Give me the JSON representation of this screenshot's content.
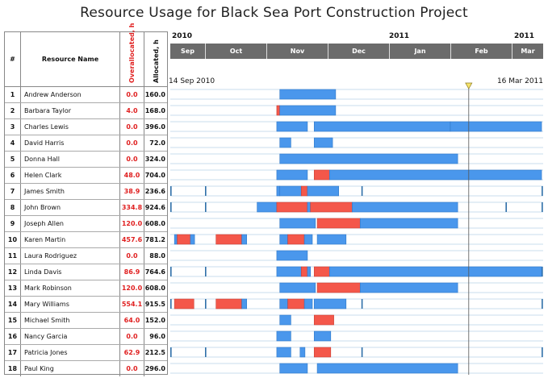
{
  "title": "Resource Usage for Black Sea Port Construction Project",
  "columns": {
    "num": "#",
    "name": "Resource Name",
    "overallocated": "Overallocated, h",
    "allocated": "Allocated, h"
  },
  "timeline": {
    "years": [
      {
        "label": "2010",
        "month_index": 0
      },
      {
        "label": "2011",
        "month_index": 4
      },
      {
        "label": "2011",
        "month_index": 6
      }
    ],
    "months": [
      "Sep",
      "Oct",
      "Nov",
      "Dec",
      "Jan",
      "Feb",
      "Mar"
    ],
    "start_label": "14 Sep 2010",
    "end_label": "16 Mar 2011",
    "current_marker_month": 5.3
  },
  "colors": {
    "normal": "#4a97ec",
    "overallocated": "#f4574a",
    "tick": "#2e6fa8",
    "grid": "#c9dcee"
  },
  "chart_data": {
    "type": "gantt",
    "title": "Resource Usage for Black Sea Port Construction Project",
    "x_units": "months from start of Sep 2010",
    "resources": [
      {
        "num": "1",
        "name": "Andrew Anderson",
        "overallocated": "0.0",
        "allocated": "160.0",
        "segments": [
          [
            2.22,
            3.13,
            "n"
          ]
        ]
      },
      {
        "num": "2",
        "name": "Barbara Taylor",
        "overallocated": "4.0",
        "allocated": "168.0",
        "segments": [
          [
            2.17,
            2.22,
            "o"
          ],
          [
            2.22,
            3.13,
            "n"
          ]
        ]
      },
      {
        "num": "3",
        "name": "Charles Lewis",
        "overallocated": "0.0",
        "allocated": "396.0",
        "segments": [
          [
            2.17,
            2.67,
            "n"
          ],
          [
            2.78,
            5.0,
            "n"
          ],
          [
            5.0,
            6.95,
            "n"
          ]
        ]
      },
      {
        "num": "4",
        "name": "David Harris",
        "overallocated": "0.0",
        "allocated": "72.0",
        "segments": [
          [
            2.22,
            2.4,
            "n"
          ],
          [
            2.78,
            3.08,
            "n"
          ]
        ]
      },
      {
        "num": "5",
        "name": "Donna Hall",
        "overallocated": "0.0",
        "allocated": "324.0",
        "segments": [
          [
            2.22,
            5.12,
            "n"
          ]
        ]
      },
      {
        "num": "6",
        "name": "Helen Clark",
        "overallocated": "48.0",
        "allocated": "704.0",
        "segments": [
          [
            2.17,
            2.67,
            "n"
          ],
          [
            2.78,
            3.03,
            "o"
          ],
          [
            3.03,
            6.95,
            "n"
          ]
        ]
      },
      {
        "num": "7",
        "name": "James Smith",
        "overallocated": "38.9",
        "allocated": "236.6",
        "segments": [
          [
            2.17,
            2.22,
            "n"
          ],
          [
            2.22,
            2.57,
            "n"
          ],
          [
            2.57,
            2.67,
            "o"
          ],
          [
            2.67,
            3.18,
            "n"
          ]
        ],
        "ticks": [
          0.0,
          1.0,
          2.17,
          3.55,
          6.95
        ]
      },
      {
        "num": "8",
        "name": "John Brown",
        "overallocated": "334.8",
        "allocated": "924.6",
        "segments": [
          [
            1.85,
            2.17,
            "n"
          ],
          [
            2.17,
            2.67,
            "o"
          ],
          [
            2.67,
            2.72,
            "n"
          ],
          [
            2.72,
            3.4,
            "o"
          ],
          [
            3.4,
            5.12,
            "n"
          ]
        ],
        "ticks": [
          0.0,
          1.0,
          5.9,
          6.95
        ]
      },
      {
        "num": "9",
        "name": "Joseph Allen",
        "overallocated": "120.0",
        "allocated": "608.0",
        "segments": [
          [
            2.22,
            2.8,
            "n"
          ],
          [
            2.83,
            3.53,
            "o"
          ],
          [
            3.53,
            5.12,
            "n"
          ]
        ]
      },
      {
        "num": "10",
        "name": "Karen Martin",
        "overallocated": "457.6",
        "allocated": "781.2",
        "segments": [
          [
            0.12,
            0.2,
            "n"
          ],
          [
            0.2,
            0.58,
            "o"
          ],
          [
            0.58,
            0.7,
            "n"
          ],
          [
            1.18,
            1.6,
            "o"
          ],
          [
            1.6,
            1.68,
            "n"
          ],
          [
            2.22,
            2.35,
            "n"
          ],
          [
            2.35,
            2.62,
            "o"
          ],
          [
            2.62,
            2.75,
            "n"
          ],
          [
            2.83,
            3.3,
            "n"
          ]
        ]
      },
      {
        "num": "11",
        "name": "Laura Rodriguez",
        "overallocated": "0.0",
        "allocated": "88.0",
        "segments": [
          [
            2.17,
            2.67,
            "n"
          ]
        ]
      },
      {
        "num": "12",
        "name": "Linda Davis",
        "overallocated": "86.9",
        "allocated": "764.6",
        "segments": [
          [
            2.17,
            2.57,
            "n"
          ],
          [
            2.57,
            2.67,
            "o"
          ],
          [
            2.67,
            2.72,
            "n"
          ],
          [
            2.78,
            3.03,
            "o"
          ],
          [
            3.03,
            6.95,
            "n"
          ]
        ],
        "ticks": [
          0.0,
          1.0,
          3.55,
          6.95
        ]
      },
      {
        "num": "13",
        "name": "Mark Robinson",
        "overallocated": "120.0",
        "allocated": "608.0",
        "segments": [
          [
            2.22,
            2.8,
            "n"
          ],
          [
            2.83,
            3.53,
            "o"
          ],
          [
            3.53,
            5.12,
            "n"
          ]
        ]
      },
      {
        "num": "14",
        "name": "Mary Williams",
        "overallocated": "554.1",
        "allocated": "915.5",
        "segments": [
          [
            0.12,
            0.68,
            "o"
          ],
          [
            1.18,
            1.6,
            "o"
          ],
          [
            1.6,
            1.68,
            "n"
          ],
          [
            2.22,
            2.35,
            "n"
          ],
          [
            2.35,
            2.62,
            "o"
          ],
          [
            2.62,
            2.75,
            "n"
          ],
          [
            2.78,
            3.3,
            "n"
          ]
        ],
        "ticks": [
          0.0,
          1.0,
          3.55,
          6.95
        ]
      },
      {
        "num": "15",
        "name": "Michael Smith",
        "overallocated": "64.0",
        "allocated": "152.0",
        "segments": [
          [
            2.22,
            2.4,
            "n"
          ],
          [
            2.78,
            3.1,
            "o"
          ]
        ]
      },
      {
        "num": "16",
        "name": "Nancy Garcia",
        "overallocated": "0.0",
        "allocated": "96.0",
        "segments": [
          [
            2.17,
            2.4,
            "n"
          ],
          [
            2.78,
            3.05,
            "n"
          ]
        ]
      },
      {
        "num": "17",
        "name": "Patricia Jones",
        "overallocated": "62.9",
        "allocated": "212.5",
        "segments": [
          [
            2.17,
            2.4,
            "n"
          ],
          [
            2.55,
            2.63,
            "n"
          ],
          [
            2.78,
            3.05,
            "o"
          ]
        ],
        "ticks": [
          0.0,
          1.0,
          3.55,
          6.95
        ]
      },
      {
        "num": "18",
        "name": "Paul King",
        "overallocated": "0.0",
        "allocated": "296.0",
        "segments": [
          [
            2.22,
            2.67,
            "n"
          ],
          [
            2.83,
            5.12,
            "n"
          ]
        ]
      }
    ]
  }
}
